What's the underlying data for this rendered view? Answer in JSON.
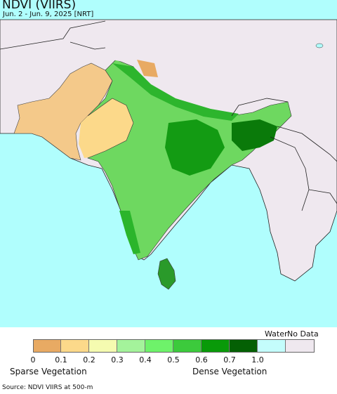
{
  "title": "NDVI (VIIRS)",
  "subtitle": "Jun. 2 - Jun. 9, 2025 [NRT]",
  "legend": {
    "water_label": "Water",
    "nodata_label": "No Data",
    "sparse_label": "Sparse Vegetation",
    "dense_label": "Dense Vegetation",
    "ticks": [
      "0",
      "0.1",
      "0.2",
      "0.3",
      "0.4",
      "0.5",
      "0.6",
      "0.7",
      "1.0"
    ],
    "colors": [
      "#e8aa63",
      "#fcd98a",
      "#f5fbb0",
      "#a4f39b",
      "#6ef26a",
      "#3cca3c",
      "#099a09",
      "#046004",
      "#c4fdfc",
      "#efe8ef"
    ]
  },
  "source": "Source: NDVI VIIRS at 500-m",
  "colors": {
    "ocean": "#b0fefd",
    "nodata": "#efe8ef",
    "border": "#222222"
  }
}
